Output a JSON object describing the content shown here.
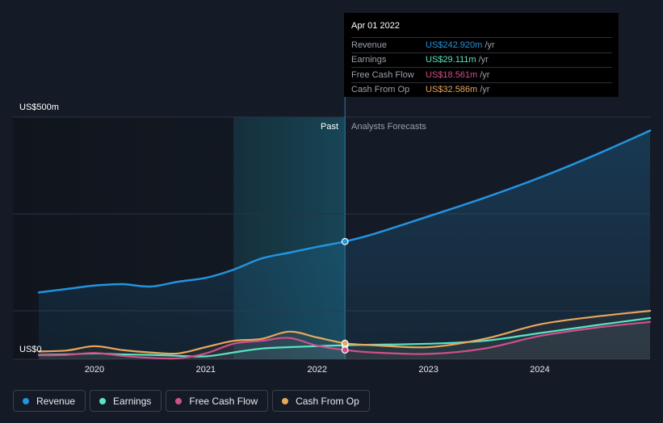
{
  "chart_data": {
    "type": "area",
    "y_max_label": "US$500m",
    "y_min_label": "US$0",
    "ylim": [
      0,
      500
    ],
    "xlim": [
      2019.5,
      2024.99
    ],
    "x_ticks": [
      2020,
      2021,
      2022,
      2023,
      2024
    ],
    "x_tick_labels": [
      "2020",
      "2021",
      "2022",
      "2023",
      "2024"
    ],
    "past_label": "Past",
    "forecast_label": "Analysts Forecasts",
    "divider_x": 2022.25,
    "highlight_start": 2021.25,
    "series": [
      {
        "name": "Revenue",
        "color": "#2394df",
        "x": [
          2019.5,
          2019.75,
          2020.0,
          2020.25,
          2020.5,
          2020.75,
          2021.0,
          2021.25,
          2021.5,
          2021.75,
          2022.0,
          2022.25,
          2022.5,
          2023.0,
          2023.5,
          2024.0,
          2024.5,
          2024.99
        ],
        "values": [
          138,
          145,
          152,
          155,
          150,
          160,
          168,
          185,
          208,
          220,
          232,
          243,
          258,
          295,
          333,
          375,
          422,
          472
        ]
      },
      {
        "name": "Earnings",
        "color": "#58e5c5",
        "x": [
          2019.5,
          2019.75,
          2020.0,
          2020.25,
          2020.5,
          2020.75,
          2021.0,
          2021.25,
          2021.5,
          2021.75,
          2022.0,
          2022.25,
          2022.5,
          2023.0,
          2023.5,
          2024.0,
          2024.5,
          2024.99
        ],
        "values": [
          9,
          10,
          12,
          10,
          9,
          7,
          6,
          14,
          22,
          25,
          27,
          29,
          30,
          32,
          38,
          54,
          70,
          85
        ]
      },
      {
        "name": "Free Cash Flow",
        "color": "#d14f8c",
        "x": [
          2019.5,
          2019.75,
          2020.0,
          2020.25,
          2020.5,
          2020.75,
          2021.0,
          2021.25,
          2021.5,
          2021.75,
          2022.0,
          2022.25,
          2022.5,
          2023.0,
          2023.5,
          2024.0,
          2024.5,
          2024.99
        ],
        "values": [
          8,
          9,
          13,
          7,
          3,
          2,
          12,
          32,
          38,
          44,
          28,
          19,
          14,
          11,
          22,
          48,
          65,
          77
        ]
      },
      {
        "name": "Cash From Op",
        "color": "#e9a75c",
        "x": [
          2019.5,
          2019.75,
          2020.0,
          2020.25,
          2020.5,
          2020.75,
          2021.0,
          2021.25,
          2021.5,
          2021.75,
          2022.0,
          2022.25,
          2022.5,
          2023.0,
          2023.5,
          2024.0,
          2024.5,
          2024.99
        ],
        "values": [
          16,
          18,
          27,
          19,
          14,
          12,
          25,
          38,
          42,
          57,
          45,
          33,
          29,
          25,
          42,
          72,
          88,
          100
        ]
      }
    ]
  },
  "tooltip": {
    "date": "Apr 01 2022",
    "rows": [
      {
        "label": "Revenue",
        "value": "US$242.920m",
        "unit": "/yr",
        "color": "#2394df"
      },
      {
        "label": "Earnings",
        "value": "US$29.111m",
        "unit": "/yr",
        "color": "#58e5c5"
      },
      {
        "label": "Free Cash Flow",
        "value": "US$18.561m",
        "unit": "/yr",
        "color": "#d14f8c"
      },
      {
        "label": "Cash From Op",
        "value": "US$32.586m",
        "unit": "/yr",
        "color": "#e9a75c"
      }
    ]
  },
  "legend": [
    {
      "label": "Revenue",
      "color": "#2394df"
    },
    {
      "label": "Earnings",
      "color": "#58e5c5"
    },
    {
      "label": "Free Cash Flow",
      "color": "#d14f8c"
    },
    {
      "label": "Cash From Op",
      "color": "#e9a75c"
    }
  ]
}
